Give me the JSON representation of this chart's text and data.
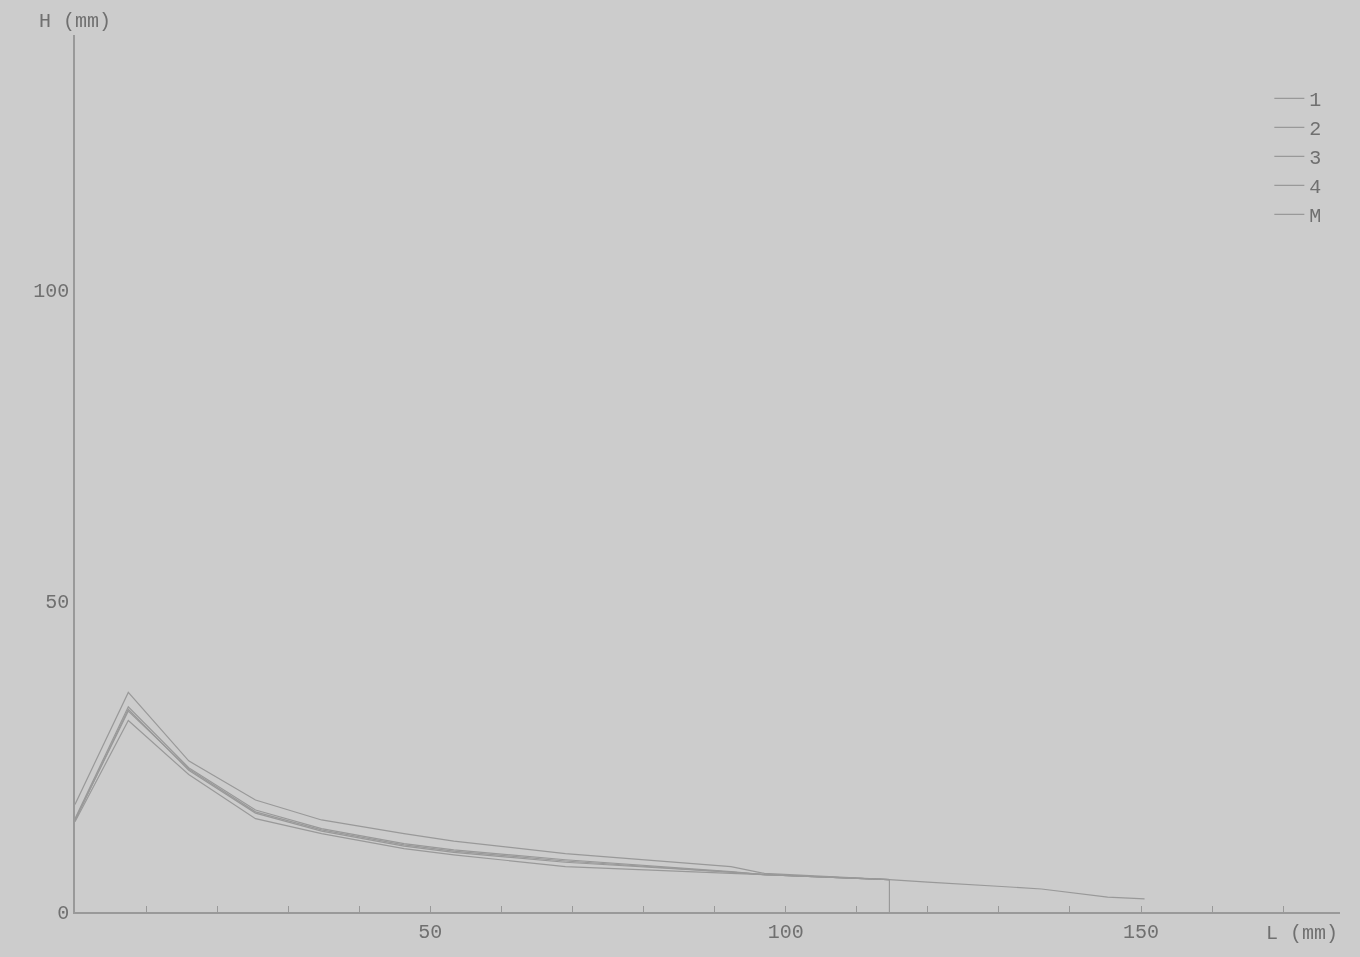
{
  "chart_data": {
    "type": "line",
    "xlabel": "L (mm)",
    "ylabel": "H (mm)",
    "xlim": [
      0,
      178
    ],
    "ylim": [
      0,
      141
    ],
    "xticks": [
      {
        "value": 10,
        "label": null
      },
      {
        "value": 20,
        "label": null
      },
      {
        "value": 30,
        "label": null
      },
      {
        "value": 40,
        "label": null
      },
      50,
      {
        "value": 60,
        "label": null
      },
      {
        "value": 70,
        "label": null
      },
      {
        "value": 80,
        "label": null
      },
      {
        "value": 90,
        "label": null
      },
      100,
      {
        "value": 110,
        "label": null
      },
      {
        "value": 120,
        "label": null
      },
      {
        "value": 130,
        "label": null
      },
      {
        "value": 140,
        "label": null
      },
      150,
      {
        "value": 160,
        "label": null
      },
      {
        "value": 170,
        "label": null
      }
    ],
    "yticks": [
      0,
      50,
      100
    ],
    "grid": false,
    "legend": "top right",
    "marker": "none",
    "line_style": "solid",
    "series": [
      {
        "name": "1",
        "color": "#999999",
        "x": [
          0,
          7.5,
          16,
          25.4,
          34.7,
          46.3,
          53.3,
          69,
          92.3,
          97,
          114.6
        ],
        "values": [
          15.0,
          33.0,
          23.2,
          16.4,
          13.4,
          11.0,
          10.0,
          8.4,
          6.5,
          6.0,
          5.2
        ]
      },
      {
        "name": "2",
        "color": "#999999",
        "x": [
          0,
          7.5,
          16,
          25.4,
          34.7,
          46.3,
          53.3,
          69,
          92.3,
          97,
          114.6
        ],
        "values": [
          14.7,
          32.6,
          22.8,
          15.9,
          13.0,
          10.6,
          9.6,
          8.0,
          6.4,
          6.0,
          5.2
        ]
      },
      {
        "name": "3",
        "color": "#999999",
        "x": [
          0,
          7.5,
          16,
          25.4,
          34.7,
          46.3,
          53.3,
          69,
          92.3,
          97,
          114.6
        ],
        "values": [
          14.5,
          30.8,
          22.1,
          15.0,
          12.6,
          10.2,
          9.2,
          7.3,
          6.2,
          6.0,
          5.2
        ]
      },
      {
        "name": "4",
        "color": "#999999",
        "x": [
          0,
          7.5,
          16,
          25.4,
          34.7,
          46.3,
          53.3,
          69,
          92.3,
          97,
          114.6
        ],
        "values": [
          14.8,
          32.3,
          23.0,
          16.1,
          13.2,
          10.8,
          9.8,
          8.2,
          6.4,
          6.0,
          5.2
        ]
      },
      {
        "name": "M",
        "color": "#999999",
        "x": [
          0,
          7.5,
          16,
          25.4,
          34.7,
          46.3,
          53.3,
          69,
          92.3,
          97,
          114.6,
          120,
          130.4,
          136,
          145.3,
          150.5
        ],
        "values": [
          17.3,
          35.3,
          24.3,
          18.0,
          14.8,
          12.6,
          11.4,
          9.4,
          7.3,
          6.2,
          5.2,
          4.8,
          4.1,
          3.7,
          2.4,
          2.1
        ]
      },
      {
        "color": "#999999",
        "x": [
          114.6,
          114.6
        ],
        "values": [
          0,
          5.2
        ]
      }
    ]
  }
}
